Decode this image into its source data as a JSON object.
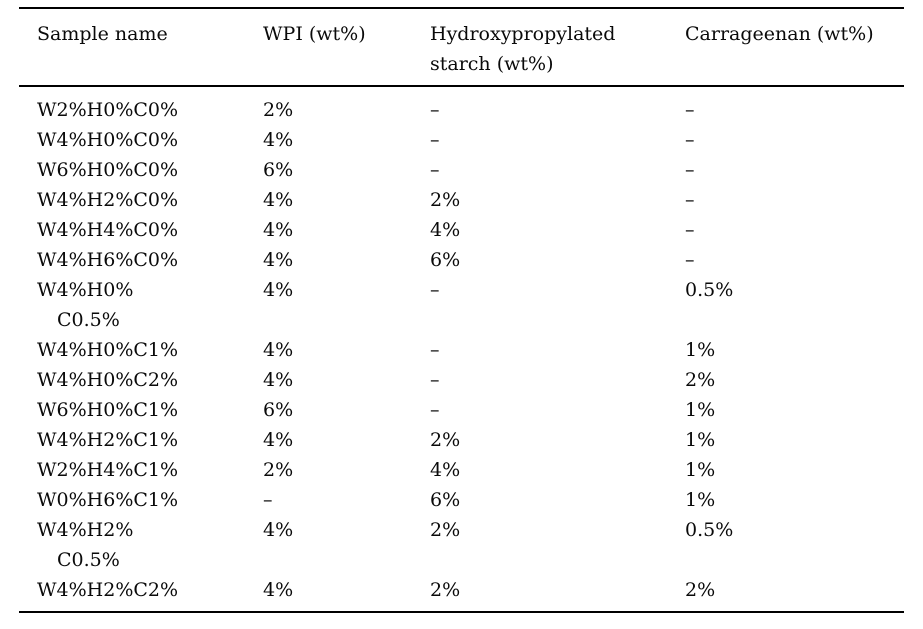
{
  "table": {
    "headers": [
      {
        "lines": [
          "Sample name"
        ]
      },
      {
        "lines": [
          "WPI (wt%)"
        ]
      },
      {
        "lines": [
          "Hydroxypropylated",
          "starch (wt%)"
        ]
      },
      {
        "lines": [
          "Carrageenan (wt%)"
        ]
      }
    ],
    "rows": [
      {
        "name": [
          "W2%H0%C0%"
        ],
        "wpi": "2%",
        "starch": "–",
        "carrageenan": "–"
      },
      {
        "name": [
          "W4%H0%C0%"
        ],
        "wpi": "4%",
        "starch": "–",
        "carrageenan": "–"
      },
      {
        "name": [
          "W6%H0%C0%"
        ],
        "wpi": "6%",
        "starch": "–",
        "carrageenan": "–"
      },
      {
        "name": [
          "W4%H2%C0%"
        ],
        "wpi": "4%",
        "starch": "2%",
        "carrageenan": "–"
      },
      {
        "name": [
          "W4%H4%C0%"
        ],
        "wpi": "4%",
        "starch": "4%",
        "carrageenan": "–"
      },
      {
        "name": [
          "W4%H6%C0%"
        ],
        "wpi": "4%",
        "starch": "6%",
        "carrageenan": "–"
      },
      {
        "name": [
          "W4%H0%",
          "C0.5%"
        ],
        "wpi": "4%",
        "starch": "–",
        "carrageenan": "0.5%"
      },
      {
        "name": [
          "W4%H0%C1%"
        ],
        "wpi": "4%",
        "starch": "–",
        "carrageenan": "1%"
      },
      {
        "name": [
          "W4%H0%C2%"
        ],
        "wpi": "4%",
        "starch": "–",
        "carrageenan": "2%"
      },
      {
        "name": [
          "W6%H0%C1%"
        ],
        "wpi": "6%",
        "starch": "–",
        "carrageenan": "1%"
      },
      {
        "name": [
          "W4%H2%C1%"
        ],
        "wpi": "4%",
        "starch": "2%",
        "carrageenan": "1%"
      },
      {
        "name": [
          "W2%H4%C1%"
        ],
        "wpi": "2%",
        "starch": "4%",
        "carrageenan": "1%"
      },
      {
        "name": [
          "W0%H6%C1%"
        ],
        "wpi": "–",
        "starch": "6%",
        "carrageenan": "1%"
      },
      {
        "name": [
          "W4%H2%",
          "C0.5%"
        ],
        "wpi": "4%",
        "starch": "2%",
        "carrageenan": "0.5%"
      },
      {
        "name": [
          "W4%H2%C2%"
        ],
        "wpi": "4%",
        "starch": "2%",
        "carrageenan": "2%"
      }
    ]
  },
  "colors": {
    "text": "#0a0a0a",
    "rule": "#000000",
    "background": "#ffffff"
  }
}
